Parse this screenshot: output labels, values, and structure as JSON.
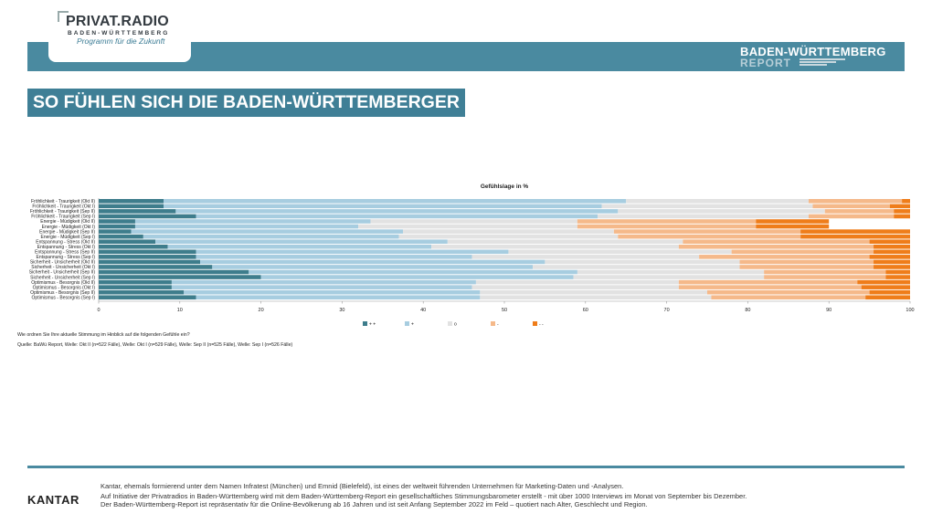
{
  "header": {
    "logo_name": "PRIVAT.RADIO",
    "logo_sub": "BADEN-WÜRTTEMBERG",
    "logo_tagline": "Programm für die Zukunft",
    "report_title": "BADEN-WÜRTTEMBERG",
    "report_sub": "REPORT"
  },
  "headline": "SO FÜHLEN SICH DIE BADEN-WÜRTTEMBERGER",
  "chart_data": {
    "type": "bar",
    "orientation": "horizontal",
    "stacked": true,
    "title": "Gefühlslage in %",
    "categories": [
      "Fröhlichkeit - Traurigkeit (Okt II)",
      "Fröhlichkeit - Traurigkeit (Okt I)",
      "Fröhlichkeit - Traurigkeit (Sep II)",
      "Fröhlichkeit - Traurigkeit (Sep I)",
      "Energie - Müdigkeit (Okt II)",
      "Energie - Müdigkeit (Okt I)",
      "Energie - Müdigkeit (Sep II)",
      "Energie - Müdigkeit (Sep I)",
      "Entspannung - Stress (Okt II)",
      "Entspannung - Stress (Okt I)",
      "Entspannung - Stress (Sep II)",
      "Entspannung - Stress (Sep I)",
      "Sicherheit - Unsicherheit (Okt II)",
      "Sicherheit - Unsicherheit (Okt I)",
      "Sicherheit - Unsicherheit (Sep II)",
      "Sicherheit - Unsicherheit (Sep I)",
      "Optimismus - Besorgnis (Okt II)",
      "Optimismus - Besorgnis (Okt I)",
      "Optimismus - Besorgnis (Sep II)",
      "Optimismus - Besorgnis (Sep I)"
    ],
    "series": [
      {
        "name": "+ +",
        "color": "#3e7d8c",
        "values": [
          8,
          8,
          9.5,
          12,
          4.5,
          4.5,
          4,
          5.5,
          7,
          8.5,
          12,
          12,
          12.5,
          14,
          18.5,
          20,
          9,
          9,
          10.5,
          12
        ]
      },
      {
        "name": "+",
        "color": "#a7cde0",
        "values": [
          57,
          54,
          54.5,
          49.5,
          29,
          27.5,
          33.5,
          31.5,
          36,
          32.5,
          38.5,
          34,
          42.5,
          39.5,
          40.5,
          38.5,
          37.5,
          37,
          36.5,
          35
        ]
      },
      {
        "name": "o",
        "color": "#e2e2e2",
        "values": [
          22.5,
          26,
          25.5,
          26,
          25.5,
          27,
          26,
          27,
          29,
          30.5,
          27.5,
          28,
          24,
          25.5,
          23,
          23.5,
          25,
          25.5,
          28,
          28.5
        ]
      },
      {
        "name": "-",
        "color": "#f5b98a",
        "values": [
          11.5,
          9.5,
          8.5,
          10.5,
          22,
          22,
          23,
          22.5,
          23,
          24,
          17.5,
          21,
          16.5,
          16.5,
          15,
          15,
          22,
          22.5,
          20,
          19
        ]
      },
      {
        "name": "- -",
        "color": "#ef7d1a",
        "values": [
          1,
          2.5,
          2,
          2,
          9,
          9,
          13.5,
          13.5,
          5,
          4.5,
          4.5,
          5,
          4.5,
          4.5,
          3,
          3,
          6.5,
          6,
          5,
          5.5
        ]
      }
    ],
    "xlim": [
      0,
      100
    ],
    "xticks": [
      "0",
      "10",
      "20",
      "30",
      "40",
      "50",
      "60",
      "70",
      "80",
      "90",
      "100"
    ],
    "legend_position": "bottom"
  },
  "question": "Wie ordnen Sie Ihre aktuelle Stimmung im Hinblick auf die folgenden Gefühle ein?",
  "source": "Quelle: BaWü Report, Welle: Okt II (n=522 Fälle), Welle: Okt I (n=529 Fälle), Welle: Sep II (n=525 Fälle), Welle: Sep I (n=526 Fälle)",
  "footer": {
    "brand": "KANTAR",
    "line1": "Kantar, ehemals formierend unter dem Namen Infratest (München) und Emnid (Bielefeld), ist eines der weltweit führenden Unternehmen für Marketing-Daten und -Analysen.",
    "line2": "Auf Initiative der Privatradios in Baden-Württemberg wird mit dem Baden-Württemberg-Report ein gesellschaftliches Stimmungsbarometer erstellt - mit über 1000 Interviews im Monat von September bis Dezember.",
    "line3": "Der Baden-Württemberg-Report ist repräsentativ für die Online-Bevölkerung ab 16 Jahren und ist seit Anfang September 2022 im Feld – quotiert nach Alter, Geschlecht und Region."
  }
}
